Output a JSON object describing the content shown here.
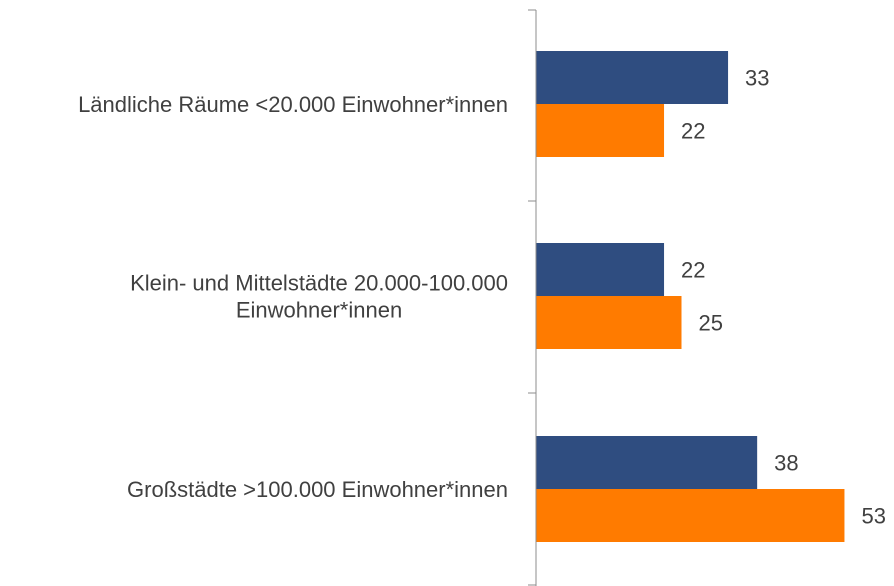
{
  "chart_data": {
    "type": "bar",
    "orientation": "horizontal",
    "categories": [
      [
        "Ländliche Räume <20.000 Einwohner*innen"
      ],
      [
        "Klein- und Mittelstädte 20.000-100.000",
        "Einwohner*innen"
      ],
      [
        "Großstädte >100.000 Einwohner*innen"
      ]
    ],
    "series": [
      {
        "values": [
          33,
          22,
          38
        ],
        "color": "#2F4D80"
      },
      {
        "values": [
          22,
          25,
          53
        ],
        "color": "#FF7B00"
      }
    ],
    "xlim": [
      0,
      55
    ],
    "grid": false,
    "legend": "none"
  }
}
